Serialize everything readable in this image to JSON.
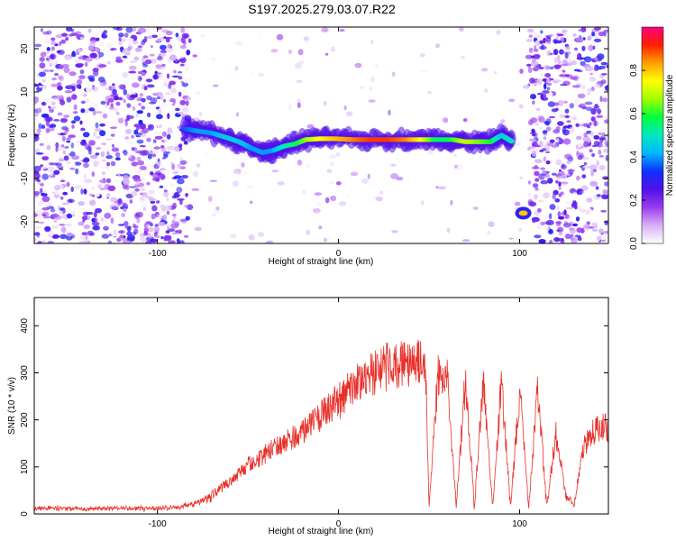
{
  "title": "S197.2025.279.03.07.R22",
  "chart_data": [
    {
      "type": "heatmap",
      "name": "spectrogram",
      "xlabel": "Height of straight line (km)",
      "ylabel": "Frequency (Hz)",
      "xlim": [
        -168,
        149
      ],
      "ylim": [
        -25,
        25
      ],
      "xticks": [
        -100,
        0,
        100
      ],
      "yticks": [
        -20,
        -10,
        0,
        10,
        20
      ],
      "xtick_labels": [
        "-100",
        "0",
        "100"
      ],
      "ytick_labels": [
        "-20",
        "-10",
        "0",
        "10",
        "20"
      ],
      "colorbar": {
        "label": "Normalized spectral amplitude",
        "range": [
          0.0,
          1.0
        ],
        "ticks": [
          0.0,
          0.2,
          0.4,
          0.6,
          0.8
        ],
        "tick_labels": [
          "0.0",
          "0.2",
          "0.4",
          "0.6",
          "0.8"
        ],
        "colors": [
          "#ffffff",
          "#d8b0f8",
          "#9a3cf0",
          "#5010e8",
          "#1030ff",
          "#00b8ff",
          "#00e8c0",
          "#00ff40",
          "#a0ff00",
          "#ffff00",
          "#ffa000",
          "#ff2000",
          "#ff0080"
        ]
      },
      "ridge": [
        {
          "x": -85,
          "y": 1.5,
          "a": 0.35
        },
        {
          "x": -78,
          "y": 1.0,
          "a": 0.4
        },
        {
          "x": -70,
          "y": 0.5,
          "a": 0.4
        },
        {
          "x": -62,
          "y": -0.5,
          "a": 0.45
        },
        {
          "x": -55,
          "y": -1.5,
          "a": 0.45
        },
        {
          "x": -48,
          "y": -3.0,
          "a": 0.4
        },
        {
          "x": -42,
          "y": -4.0,
          "a": 0.4
        },
        {
          "x": -36,
          "y": -3.5,
          "a": 0.4
        },
        {
          "x": -30,
          "y": -2.5,
          "a": 0.5
        },
        {
          "x": -24,
          "y": -2.0,
          "a": 0.55
        },
        {
          "x": -18,
          "y": -1.0,
          "a": 0.65
        },
        {
          "x": -10,
          "y": -0.8,
          "a": 0.75
        },
        {
          "x": -2,
          "y": -0.8,
          "a": 0.8
        },
        {
          "x": 8,
          "y": -1.0,
          "a": 0.85
        },
        {
          "x": 18,
          "y": -1.0,
          "a": 0.9
        },
        {
          "x": 28,
          "y": -1.0,
          "a": 0.9
        },
        {
          "x": 38,
          "y": -1.0,
          "a": 0.85
        },
        {
          "x": 46,
          "y": -1.0,
          "a": 0.75
        },
        {
          "x": 55,
          "y": -1.0,
          "a": 0.55
        },
        {
          "x": 63,
          "y": -1.0,
          "a": 0.6
        },
        {
          "x": 70,
          "y": -1.5,
          "a": 0.7
        },
        {
          "x": 77,
          "y": -1.5,
          "a": 0.65
        },
        {
          "x": 84,
          "y": -1.5,
          "a": 0.6
        },
        {
          "x": 90,
          "y": 0.0,
          "a": 0.45
        },
        {
          "x": 96,
          "y": -1.5,
          "a": 0.5
        },
        {
          "x": 102,
          "y": -18.0,
          "a": 0.8
        }
      ]
    },
    {
      "type": "line",
      "name": "snr-plot",
      "xlabel": "Height of straight line (km)",
      "ylabel": "SNR (10 * v/v)",
      "xlim": [
        -168,
        149
      ],
      "ylim": [
        0,
        460
      ],
      "xticks": [
        -100,
        0,
        100
      ],
      "yticks": [
        0,
        100,
        200,
        300,
        400
      ],
      "xtick_labels": [
        "-100",
        "0",
        "100"
      ],
      "ytick_labels": [
        "0",
        "100",
        "200",
        "300",
        "400"
      ],
      "series": [
        {
          "name": "SNR",
          "color": "#e8302a",
          "x": [
            -168,
            -150,
            -130,
            -110,
            -90,
            -80,
            -70,
            -60,
            -50,
            -40,
            -30,
            -20,
            -10,
            0,
            10,
            20,
            30,
            40,
            48,
            50,
            55,
            60,
            65,
            70,
            75,
            80,
            85,
            90,
            95,
            100,
            105,
            110,
            115,
            120,
            125,
            130,
            135,
            140,
            145,
            149
          ],
          "y": [
            15,
            15,
            15,
            15,
            18,
            25,
            50,
            80,
            120,
            150,
            180,
            200,
            240,
            280,
            320,
            350,
            370,
            375,
            370,
            20,
            350,
            340,
            20,
            330,
            20,
            340,
            20,
            320,
            20,
            300,
            20,
            310,
            20,
            200,
            60,
            20,
            160,
            200,
            220,
            210
          ]
        }
      ]
    }
  ]
}
